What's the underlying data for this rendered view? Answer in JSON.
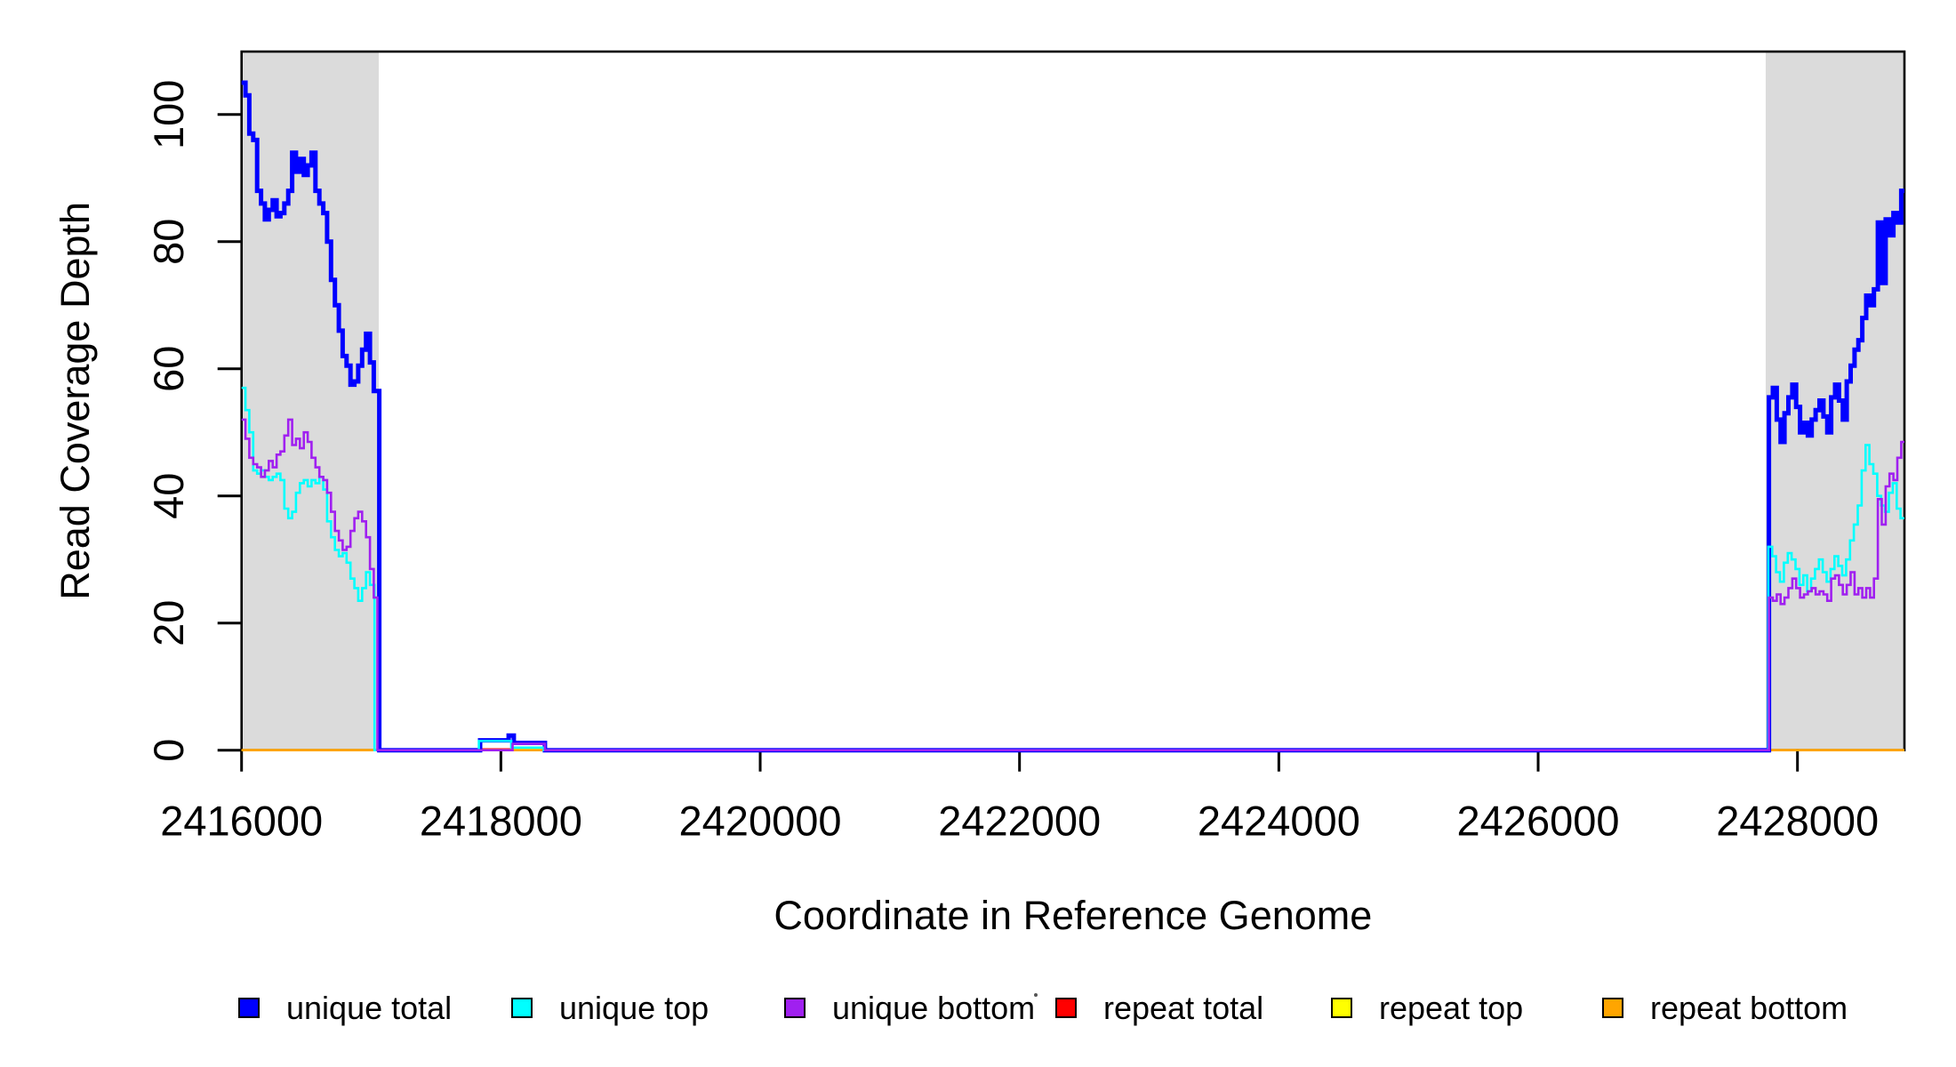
{
  "chart_data": {
    "type": "line",
    "xlabel": "Coordinate in Reference Genome",
    "ylabel": "Read Coverage Depth",
    "xlim": [
      2416000,
      2428825
    ],
    "ylim": [
      0,
      109.9
    ],
    "x_ticks": [
      2416000,
      2418000,
      2420000,
      2422000,
      2424000,
      2426000,
      2428000
    ],
    "y_ticks": [
      0,
      20,
      40,
      60,
      80,
      100
    ],
    "grid": false,
    "legend_position": "bottom",
    "highlight_regions": [
      {
        "x0": 2416000,
        "x1": 2417058,
        "color": "#DBDBDB"
      },
      {
        "x0": 2427755,
        "x1": 2428825,
        "color": "#DBDBDB"
      }
    ],
    "series": [
      {
        "name": "repeat total",
        "color": "#FF0000",
        "lwd": 2.6,
        "points": [
          [
            2416000,
            0
          ],
          [
            2417830,
            0.12
          ],
          [
            2418090,
            0
          ]
        ]
      },
      {
        "name": "repeat top",
        "color": "#FFFF00",
        "lwd": 2.6,
        "points": [
          [
            2416000,
            0
          ],
          [
            2418090,
            0.25
          ],
          [
            2418320,
            0
          ]
        ]
      },
      {
        "name": "repeat bottom",
        "color": "#FFA500",
        "lwd": 2.6,
        "points": [
          [
            2416000,
            0
          ]
        ]
      },
      {
        "name": "unique total",
        "color": "#0000FF",
        "lwd": 5,
        "points": [
          [
            2416000,
            105
          ],
          [
            2416030,
            103
          ],
          [
            2416060,
            97
          ],
          [
            2416090,
            96
          ],
          [
            2416120,
            88
          ],
          [
            2416150,
            86
          ],
          [
            2416180,
            83.5
          ],
          [
            2416210,
            85
          ],
          [
            2416240,
            86.5
          ],
          [
            2416270,
            84
          ],
          [
            2416300,
            84.5
          ],
          [
            2416330,
            86
          ],
          [
            2416360,
            88
          ],
          [
            2416390,
            94
          ],
          [
            2416420,
            91
          ],
          [
            2416450,
            93
          ],
          [
            2416480,
            90.5
          ],
          [
            2416510,
            92
          ],
          [
            2416540,
            94
          ],
          [
            2416570,
            88
          ],
          [
            2416600,
            86
          ],
          [
            2416630,
            84.5
          ],
          [
            2416660,
            80
          ],
          [
            2416690,
            74
          ],
          [
            2416720,
            70
          ],
          [
            2416750,
            66
          ],
          [
            2416780,
            62
          ],
          [
            2416810,
            60.5
          ],
          [
            2416840,
            57.5
          ],
          [
            2416870,
            58
          ],
          [
            2416900,
            60.5
          ],
          [
            2416930,
            63
          ],
          [
            2416960,
            65.5
          ],
          [
            2416990,
            61
          ],
          [
            2417020,
            56.5
          ],
          [
            2417062,
            0
          ],
          [
            2417840,
            1.55
          ],
          [
            2418060,
            2.3
          ],
          [
            2418100,
            1.15
          ],
          [
            2418340,
            0
          ],
          [
            2427780,
            55.5
          ],
          [
            2427810,
            57
          ],
          [
            2427840,
            52
          ],
          [
            2427870,
            48.5
          ],
          [
            2427900,
            53
          ],
          [
            2427930,
            55.5
          ],
          [
            2427960,
            57.5
          ],
          [
            2427990,
            54
          ],
          [
            2428020,
            50
          ],
          [
            2428050,
            51.5
          ],
          [
            2428080,
            49.5
          ],
          [
            2428110,
            52
          ],
          [
            2428140,
            53.5
          ],
          [
            2428170,
            55
          ],
          [
            2428200,
            52.5
          ],
          [
            2428230,
            50
          ],
          [
            2428260,
            55.5
          ],
          [
            2428290,
            57.5
          ],
          [
            2428320,
            55
          ],
          [
            2428350,
            52
          ],
          [
            2428380,
            58
          ],
          [
            2428410,
            60.5
          ],
          [
            2428440,
            63
          ],
          [
            2428470,
            64.5
          ],
          [
            2428500,
            68
          ],
          [
            2428530,
            71.5
          ],
          [
            2428560,
            70
          ],
          [
            2428590,
            72.5
          ],
          [
            2428620,
            83
          ],
          [
            2428650,
            73.5
          ],
          [
            2428680,
            83.5
          ],
          [
            2428710,
            81
          ],
          [
            2428740,
            84.5
          ],
          [
            2428770,
            83
          ],
          [
            2428800,
            88
          ]
        ]
      },
      {
        "name": "unique top",
        "color": "#00FFFF",
        "lwd": 2.6,
        "points": [
          [
            2416000,
            57
          ],
          [
            2416030,
            53.5
          ],
          [
            2416060,
            50
          ],
          [
            2416090,
            44
          ],
          [
            2416120,
            43.5
          ],
          [
            2416150,
            44
          ],
          [
            2416180,
            43
          ],
          [
            2416210,
            42.5
          ],
          [
            2416240,
            43
          ],
          [
            2416270,
            43.5
          ],
          [
            2416300,
            42.5
          ],
          [
            2416330,
            38
          ],
          [
            2416360,
            36.5
          ],
          [
            2416390,
            37.5
          ],
          [
            2416420,
            40.5
          ],
          [
            2416450,
            42
          ],
          [
            2416480,
            42.5
          ],
          [
            2416510,
            41.5
          ],
          [
            2416540,
            42.5
          ],
          [
            2416570,
            42
          ],
          [
            2416600,
            43
          ],
          [
            2416630,
            41
          ],
          [
            2416660,
            36
          ],
          [
            2416690,
            33.5
          ],
          [
            2416720,
            31.5
          ],
          [
            2416750,
            30.5
          ],
          [
            2416780,
            31
          ],
          [
            2416810,
            29.5
          ],
          [
            2416840,
            27
          ],
          [
            2416870,
            25.5
          ],
          [
            2416900,
            23.5
          ],
          [
            2416930,
            25.5
          ],
          [
            2416960,
            28
          ],
          [
            2416990,
            26
          ],
          [
            2417025,
            0
          ],
          [
            2417830,
            1.45
          ],
          [
            2418080,
            0.4
          ],
          [
            2418330,
            0
          ],
          [
            2427775,
            32
          ],
          [
            2427805,
            30.5
          ],
          [
            2427835,
            28
          ],
          [
            2427865,
            26.5
          ],
          [
            2427895,
            29.5
          ],
          [
            2427925,
            31
          ],
          [
            2427955,
            30
          ],
          [
            2427985,
            28.5
          ],
          [
            2428015,
            26
          ],
          [
            2428045,
            27.5
          ],
          [
            2428075,
            25
          ],
          [
            2428105,
            27
          ],
          [
            2428135,
            28.5
          ],
          [
            2428165,
            30
          ],
          [
            2428195,
            28
          ],
          [
            2428225,
            26.5
          ],
          [
            2428255,
            28.5
          ],
          [
            2428285,
            30.5
          ],
          [
            2428315,
            29
          ],
          [
            2428345,
            27.5
          ],
          [
            2428375,
            30
          ],
          [
            2428405,
            33
          ],
          [
            2428435,
            35.5
          ],
          [
            2428465,
            38.5
          ],
          [
            2428495,
            44
          ],
          [
            2428525,
            48
          ],
          [
            2428555,
            45
          ],
          [
            2428585,
            43.5
          ],
          [
            2428615,
            40
          ],
          [
            2428645,
            38.5
          ],
          [
            2428675,
            37.5
          ],
          [
            2428705,
            40.5
          ],
          [
            2428735,
            42
          ],
          [
            2428765,
            38
          ],
          [
            2428795,
            36.5
          ]
        ]
      },
      {
        "name": "unique bottom",
        "color": "#A020F0",
        "lwd": 2.6,
        "points": [
          [
            2416000,
            52
          ],
          [
            2416030,
            49
          ],
          [
            2416060,
            46
          ],
          [
            2416090,
            45
          ],
          [
            2416120,
            44.5
          ],
          [
            2416150,
            43
          ],
          [
            2416180,
            44
          ],
          [
            2416210,
            45.5
          ],
          [
            2416240,
            44.5
          ],
          [
            2416270,
            46.5
          ],
          [
            2416300,
            47
          ],
          [
            2416330,
            49.5
          ],
          [
            2416360,
            52
          ],
          [
            2416390,
            48
          ],
          [
            2416420,
            49
          ],
          [
            2416450,
            47.5
          ],
          [
            2416480,
            50
          ],
          [
            2416510,
            48.5
          ],
          [
            2416540,
            46
          ],
          [
            2416570,
            44.5
          ],
          [
            2416600,
            43
          ],
          [
            2416630,
            42.5
          ],
          [
            2416660,
            40.5
          ],
          [
            2416690,
            37.5
          ],
          [
            2416720,
            34.5
          ],
          [
            2416750,
            33
          ],
          [
            2416780,
            31.5
          ],
          [
            2416810,
            32
          ],
          [
            2416840,
            34.5
          ],
          [
            2416870,
            36.5
          ],
          [
            2416900,
            37.5
          ],
          [
            2416930,
            36
          ],
          [
            2416960,
            33.5
          ],
          [
            2416990,
            28.5
          ],
          [
            2417020,
            24
          ],
          [
            2417048,
            0
          ],
          [
            2418090,
            1.0
          ],
          [
            2418340,
            0
          ],
          [
            2427780,
            24
          ],
          [
            2427810,
            23.5
          ],
          [
            2427840,
            24.5
          ],
          [
            2427870,
            23
          ],
          [
            2427900,
            24
          ],
          [
            2427930,
            25.5
          ],
          [
            2427960,
            27
          ],
          [
            2427990,
            25.5
          ],
          [
            2428020,
            24
          ],
          [
            2428050,
            24.5
          ],
          [
            2428080,
            25
          ],
          [
            2428110,
            25.5
          ],
          [
            2428140,
            24.5
          ],
          [
            2428170,
            25
          ],
          [
            2428200,
            24.5
          ],
          [
            2428230,
            23.5
          ],
          [
            2428260,
            27
          ],
          [
            2428290,
            27.5
          ],
          [
            2428320,
            26
          ],
          [
            2428350,
            24.5
          ],
          [
            2428380,
            26
          ],
          [
            2428410,
            28
          ],
          [
            2428440,
            24.5
          ],
          [
            2428470,
            25.5
          ],
          [
            2428500,
            24
          ],
          [
            2428530,
            25.5
          ],
          [
            2428560,
            24
          ],
          [
            2428590,
            27
          ],
          [
            2428620,
            39.5
          ],
          [
            2428650,
            35.5
          ],
          [
            2428680,
            41.5
          ],
          [
            2428710,
            43.5
          ],
          [
            2428740,
            42.5
          ],
          [
            2428770,
            46
          ],
          [
            2428800,
            48.5
          ]
        ]
      }
    ]
  },
  "legend": {
    "items": [
      {
        "label": "unique total",
        "color": "#0000FF"
      },
      {
        "label": "unique top",
        "color": "#00FFFF"
      },
      {
        "label": "unique bottom",
        "color": "#A020F0"
      },
      {
        "label": "repeat total",
        "color": "#FF0000"
      },
      {
        "label": "repeat top",
        "color": "#FFFF00"
      },
      {
        "label": "repeat bottom",
        "color": "#FFA500"
      }
    ]
  }
}
